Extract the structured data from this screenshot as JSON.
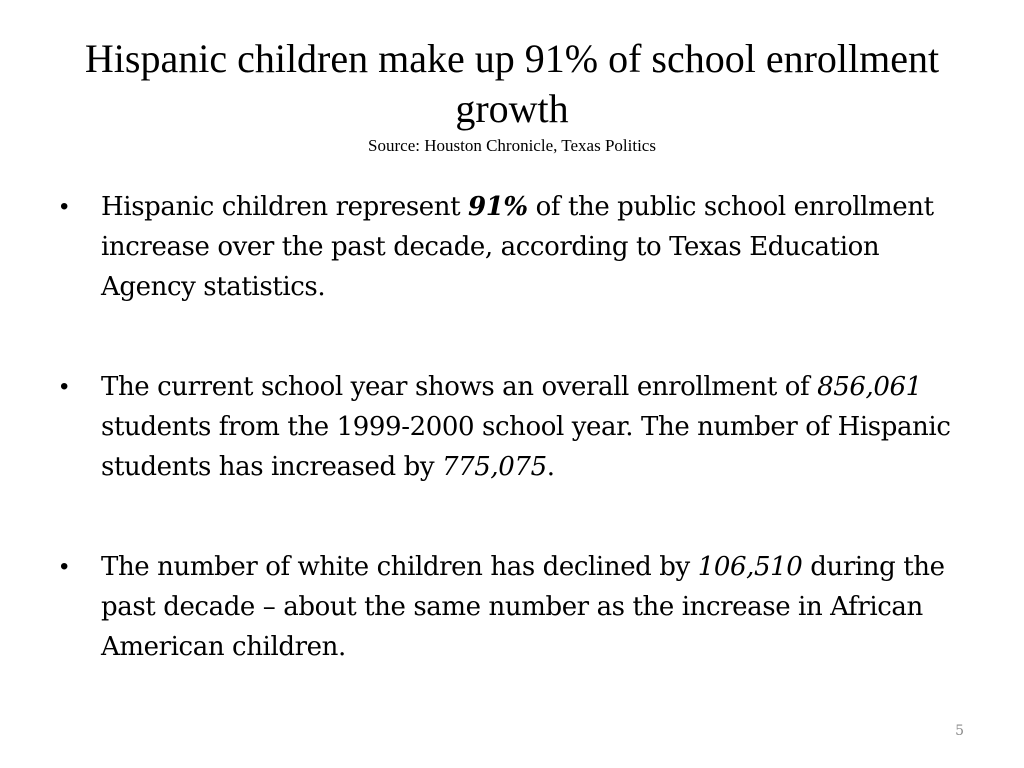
{
  "slide": {
    "title": "Hispanic children make up 91% of school enrollment growth",
    "source": "Source: Houston Chronicle, Texas Politics",
    "bullets": [
      {
        "t1": "Hispanic children represent ",
        "highlight": "91%",
        "t2": " of the public school enrollment increase over the past decade, according to Texas Education Agency statistics."
      },
      {
        "t1": "The current school year shows an overall enrollment of ",
        "highlight1": "856,061",
        "t2": " students from the 1999-2000 school year. The number of Hispanic students has increased by ",
        "highlight2": "775,075",
        "t3": "."
      },
      {
        "t1": "The number of white children has declined by ",
        "highlight": "106,510",
        "t2": " during the past decade – about the same number as the increase in African American children."
      }
    ],
    "bullet_glyph": "•",
    "page_number": "5"
  }
}
